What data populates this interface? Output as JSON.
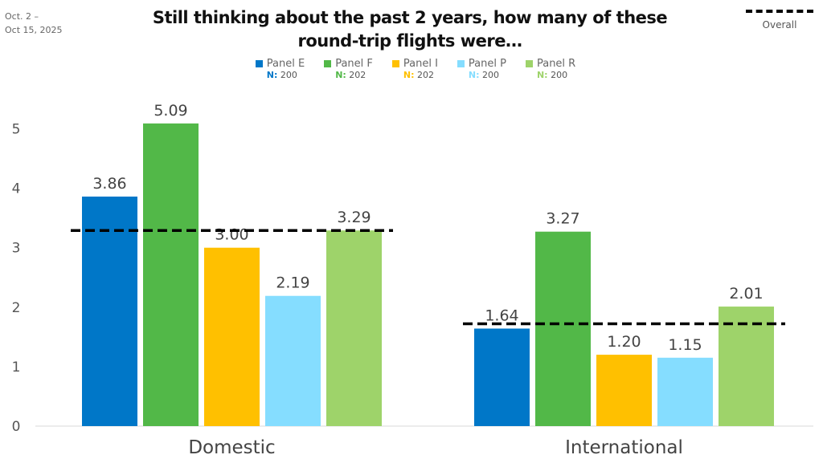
{
  "date_range": [
    "Oct. 2 –",
    "Oct 15, 2025"
  ],
  "overall_legend": "Overall",
  "chart_data": {
    "type": "bar",
    "title": "Still thinking about the past 2 years, how many of these round-trip flights were…",
    "title_lines": [
      "Still thinking about the past 2 years, how many of these",
      "round-trip flights were…"
    ],
    "categories": [
      "Domestic",
      "International"
    ],
    "series": [
      {
        "name": "Panel E",
        "n_label": "N:",
        "n": "200",
        "color": "#0077C8",
        "values": [
          3.86,
          1.64
        ],
        "labels": [
          "3.86",
          "1.64"
        ]
      },
      {
        "name": "Panel F",
        "n_label": "N:",
        "n": "202",
        "color": "#52B848",
        "values": [
          5.09,
          3.27
        ],
        "labels": [
          "5.09",
          "3.27"
        ]
      },
      {
        "name": "Panel I",
        "n_label": "N:",
        "n": "202",
        "color": "#FFC000",
        "values": [
          3.0,
          1.2
        ],
        "labels": [
          "3.00",
          "1.20"
        ]
      },
      {
        "name": "Panel P",
        "n_label": "N:",
        "n": "200",
        "color": "#85DDFF",
        "values": [
          2.19,
          1.15
        ],
        "labels": [
          "2.19",
          "1.15"
        ]
      },
      {
        "name": "Panel R",
        "n_label": "N:",
        "n": "200",
        "color": "#9ED36A",
        "values": [
          3.29,
          2.01
        ],
        "labels": [
          "3.29",
          "2.01"
        ]
      }
    ],
    "overall": [
      3.29,
      1.72
    ],
    "yticks": [
      "0",
      "1",
      "2",
      "3",
      "4",
      "5"
    ],
    "ylim": [
      0,
      5
    ],
    "grid": false,
    "legend_position": "top-center"
  }
}
